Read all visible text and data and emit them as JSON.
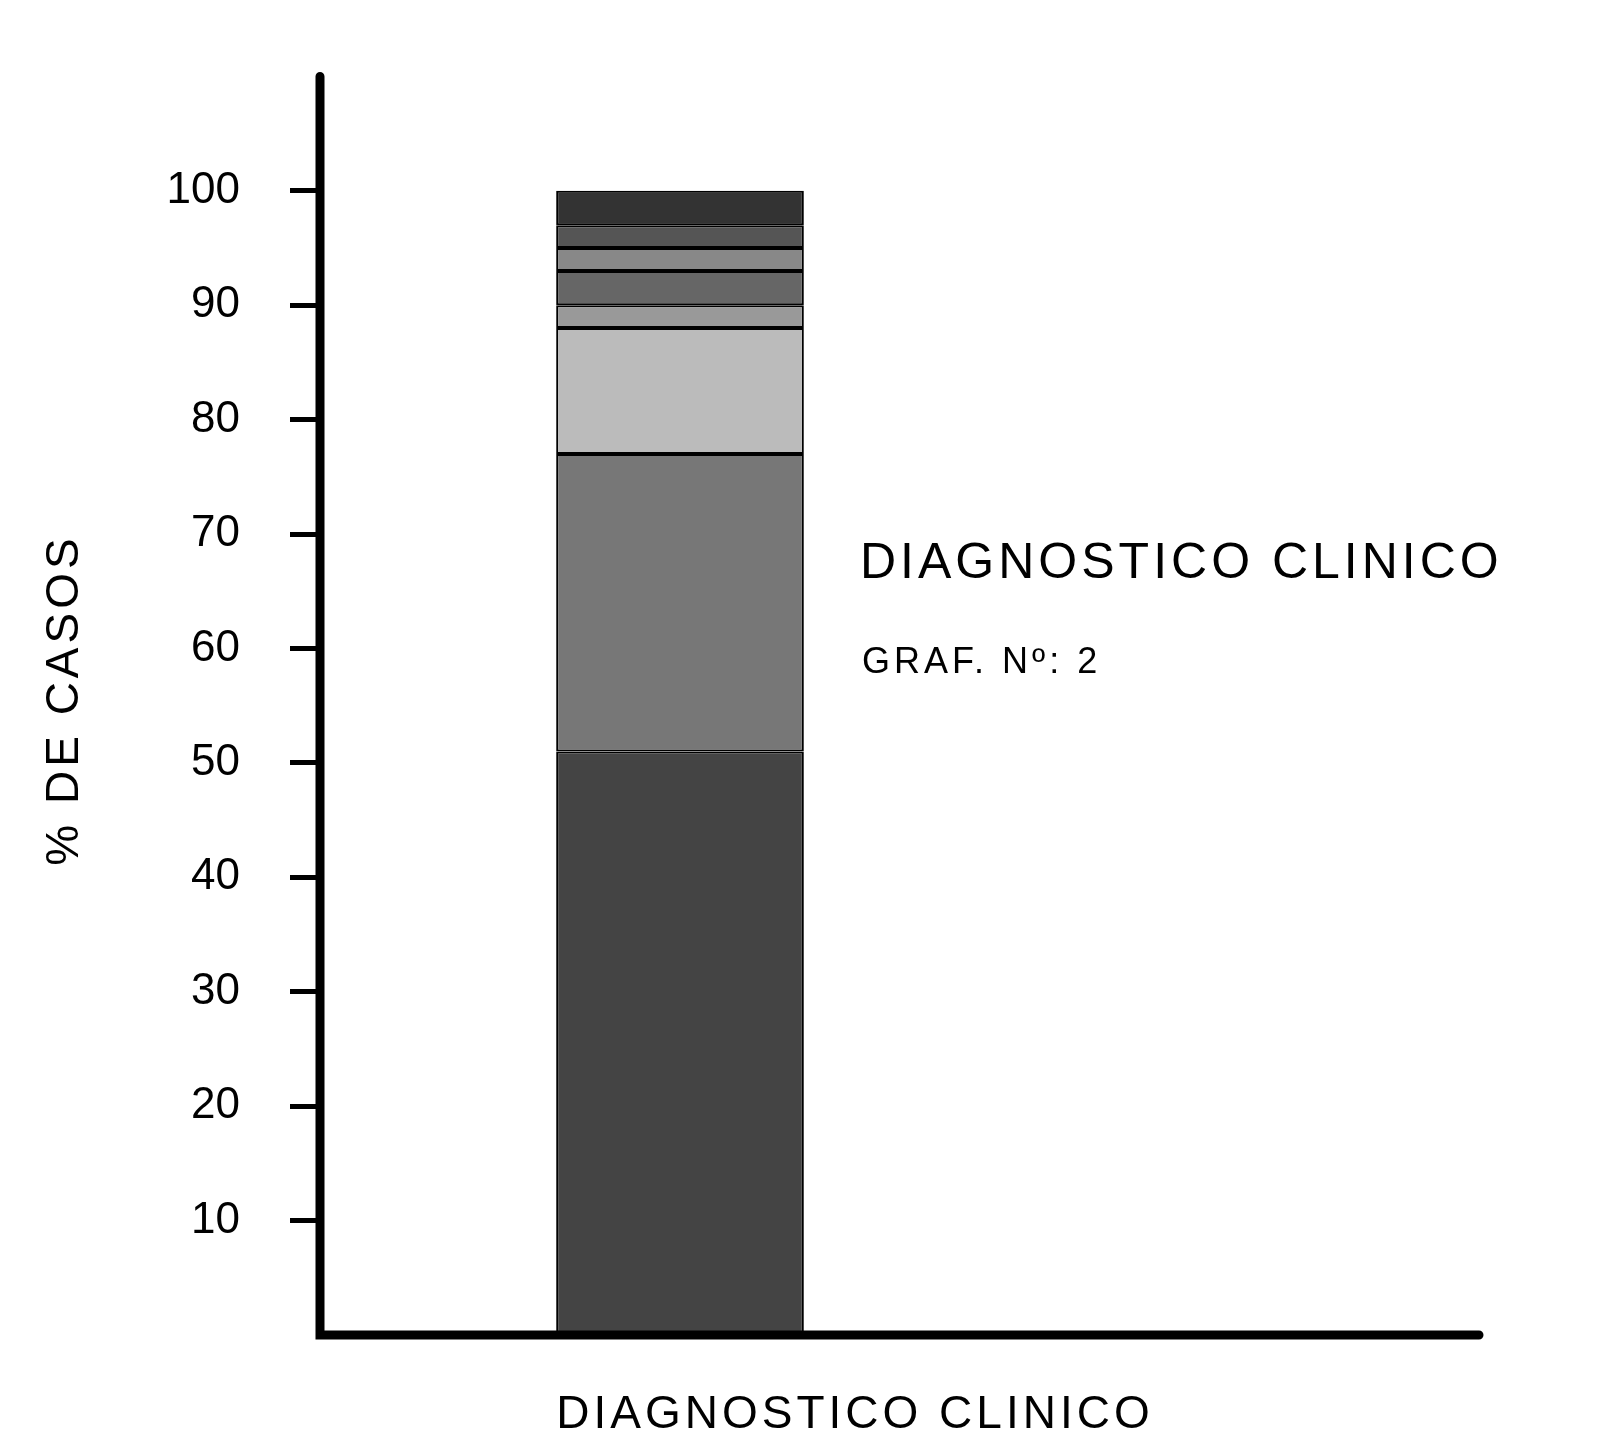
{
  "chart_data": {
    "type": "bar",
    "stacked": true,
    "title": "DIAGNOSTICO CLINICO",
    "subtitle": "GRAF. Nº: 2",
    "xlabel": "DIAGNOSTICO CLINICO",
    "ylabel": "% DE CASOS",
    "categories": [
      null
    ],
    "series": [
      {
        "color": "#444444",
        "values": [
          51
        ]
      },
      {
        "color": "#777777",
        "values": [
          26
        ]
      },
      {
        "color": "#bbbbbb",
        "values": [
          11
        ]
      },
      {
        "color": "#999999",
        "values": [
          2
        ]
      },
      {
        "color": "#666666",
        "values": [
          3
        ]
      },
      {
        "color": "#888888",
        "values": [
          2
        ]
      },
      {
        "color": "#555555",
        "values": [
          2
        ]
      },
      {
        "color": "#333333",
        "values": [
          3
        ]
      }
    ],
    "ylim": [
      0,
      110
    ],
    "yticks": [
      10,
      20,
      30,
      40,
      50,
      60,
      70,
      80,
      90,
      100
    ],
    "grid": false,
    "legend": false,
    "tick_labels": "y"
  }
}
